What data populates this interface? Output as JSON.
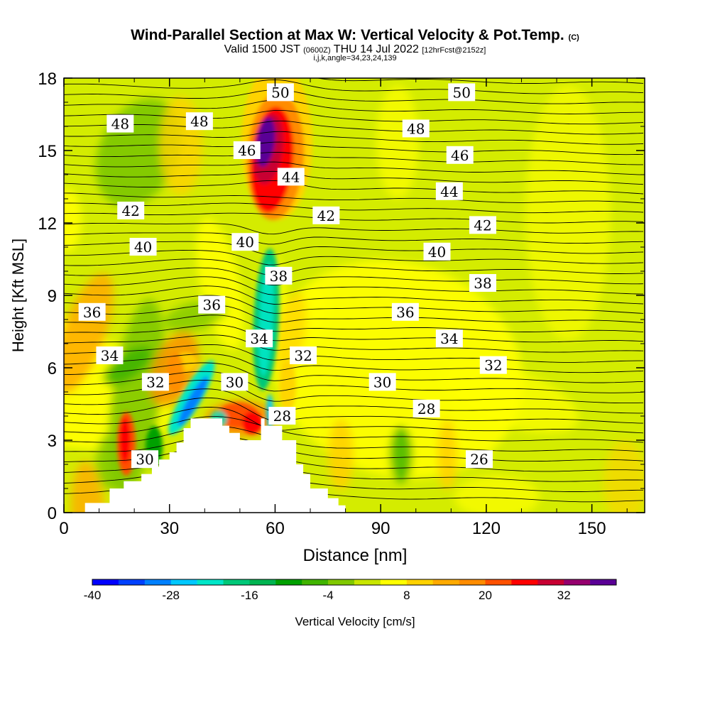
{
  "title": {
    "main": "Wind-Parallel Section at Max W: Vertical Velocity & Pot.Temp.",
    "copyright": "(C)",
    "valid_prefix": "Valid 1500 JST",
    "valid_utc": "(0600Z)",
    "valid_date": "THU 14 Jul 2022",
    "forecast": "[12hrFcst@2152z]",
    "indices": "i,j,k,angle=34,23,24,139"
  },
  "chart_data": {
    "type": "heatmap",
    "xlabel": "Distance [nm]",
    "ylabel": "Height [Kft MSL]",
    "xlim": [
      0,
      165
    ],
    "ylim": [
      0,
      18
    ],
    "x_ticks": [
      "0",
      "30",
      "60",
      "90",
      "120",
      "150"
    ],
    "y_ticks": [
      "0",
      "3",
      "6",
      "9",
      "12",
      "15",
      "18"
    ],
    "colorbar": {
      "label": "Vertical Velocity [cm/s]",
      "tick_labels": [
        "-40",
        "-28",
        "-16",
        "-4",
        "8",
        "20",
        "32"
      ],
      "colors": [
        "#0000ff",
        "#0040ff",
        "#0080ff",
        "#00c8ff",
        "#00e6c8",
        "#00c878",
        "#00b450",
        "#00a000",
        "#40b400",
        "#80c800",
        "#c8e600",
        "#ffff00",
        "#ffd200",
        "#ffaa00",
        "#ff8c00",
        "#ff5000",
        "#ff0000",
        "#c80032",
        "#96006e",
        "#5a0096"
      ]
    },
    "theta_labels": [
      {
        "text": "50",
        "x": 61.5,
        "y": 17.4
      },
      {
        "text": "50",
        "x": 113,
        "y": 17.4
      },
      {
        "text": "48",
        "x": 16,
        "y": 16.1
      },
      {
        "text": "48",
        "x": 38.5,
        "y": 16.2
      },
      {
        "text": "48",
        "x": 100,
        "y": 15.9
      },
      {
        "text": "46",
        "x": 52,
        "y": 15.0
      },
      {
        "text": "46",
        "x": 112.5,
        "y": 14.8
      },
      {
        "text": "44",
        "x": 64.5,
        "y": 13.9
      },
      {
        "text": "44",
        "x": 109.5,
        "y": 13.3
      },
      {
        "text": "42",
        "x": 19,
        "y": 12.5
      },
      {
        "text": "42",
        "x": 74.5,
        "y": 12.3
      },
      {
        "text": "42",
        "x": 119,
        "y": 11.9
      },
      {
        "text": "40",
        "x": 22.5,
        "y": 11.0
      },
      {
        "text": "40",
        "x": 51.5,
        "y": 11.2
      },
      {
        "text": "40",
        "x": 106,
        "y": 10.8
      },
      {
        "text": "38",
        "x": 61,
        "y": 9.8
      },
      {
        "text": "38",
        "x": 119,
        "y": 9.5
      },
      {
        "text": "36",
        "x": 8,
        "y": 8.3
      },
      {
        "text": "36",
        "x": 42,
        "y": 8.6
      },
      {
        "text": "36",
        "x": 97,
        "y": 8.3
      },
      {
        "text": "34",
        "x": 13,
        "y": 6.5
      },
      {
        "text": "34",
        "x": 55.5,
        "y": 7.2
      },
      {
        "text": "34",
        "x": 109.5,
        "y": 7.2
      },
      {
        "text": "32",
        "x": 26,
        "y": 5.4
      },
      {
        "text": "32",
        "x": 68,
        "y": 6.5
      },
      {
        "text": "32",
        "x": 122,
        "y": 6.1
      },
      {
        "text": "30",
        "x": 48.5,
        "y": 5.4
      },
      {
        "text": "30",
        "x": 90.5,
        "y": 5.4
      },
      {
        "text": "30",
        "x": 23,
        "y": 2.2
      },
      {
        "text": "28",
        "x": 62,
        "y": 4.0
      },
      {
        "text": "28",
        "x": 103,
        "y": 4.3
      },
      {
        "text": "26",
        "x": 118,
        "y": 2.2
      }
    ],
    "terrain_kft": [
      [
        0,
        0
      ],
      [
        6,
        0
      ],
      [
        6,
        0.4
      ],
      [
        13,
        0.4
      ],
      [
        13,
        1.0
      ],
      [
        17,
        1.0
      ],
      [
        17,
        1.3
      ],
      [
        22,
        1.3
      ],
      [
        22,
        1.6
      ],
      [
        25,
        1.6
      ],
      [
        25,
        1.9
      ],
      [
        27,
        1.9
      ],
      [
        27,
        2.2
      ],
      [
        30,
        2.2
      ],
      [
        30,
        2.5
      ],
      [
        32,
        2.5
      ],
      [
        32,
        2.9
      ],
      [
        34,
        2.9
      ],
      [
        34,
        3.5
      ],
      [
        36,
        3.5
      ],
      [
        36,
        3.9
      ],
      [
        45,
        3.9
      ],
      [
        45,
        3.6
      ],
      [
        47,
        3.6
      ],
      [
        47,
        3.3
      ],
      [
        50,
        3.3
      ],
      [
        50,
        3.0
      ],
      [
        56,
        3.0
      ],
      [
        56,
        3.9
      ],
      [
        57,
        3.9
      ],
      [
        57,
        3.6
      ],
      [
        62,
        3.6
      ],
      [
        62,
        3.0
      ],
      [
        66,
        3.0
      ],
      [
        66,
        2.0
      ],
      [
        68,
        2.0
      ],
      [
        68,
        1.6
      ],
      [
        70,
        1.6
      ],
      [
        70,
        1.0
      ],
      [
        75,
        1.0
      ],
      [
        75,
        0.6
      ],
      [
        78,
        0.6
      ],
      [
        78,
        0.3
      ],
      [
        80,
        0.3
      ],
      [
        80,
        0
      ]
    ]
  }
}
